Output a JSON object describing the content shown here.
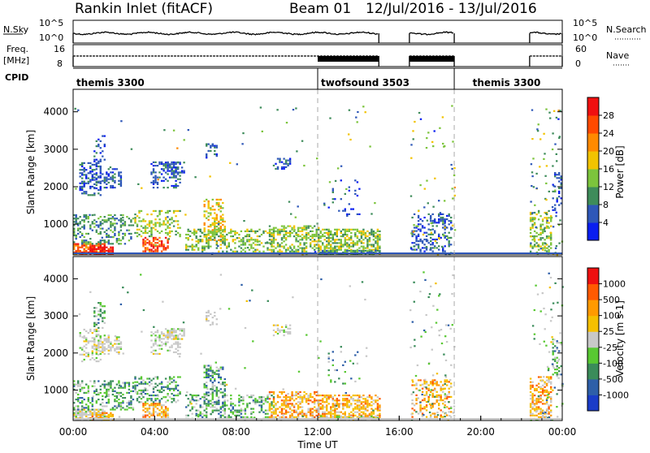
{
  "header": {
    "station": "Rankin Inlet (fitACF)",
    "beam": "Beam 01",
    "date_range": "12/Jul/2016 - 13/Jul/2016"
  },
  "top_panels": {
    "nsky_label": "N.Sky",
    "nsearch_label": "N.Search",
    "freq_label": "Freq.",
    "freq_unit": "[MHz]",
    "nave_label": "Nave",
    "cpid_label": "CPID",
    "left_top_tick": "10^5",
    "left_bottom_tick": "10^0",
    "right_top_tick": "10^5",
    "right_bottom_tick": "10^0",
    "freq_ticks": [
      "16",
      "8"
    ],
    "nave_ticks": [
      "60",
      "0"
    ]
  },
  "cpid_segments": [
    {
      "label": "themis 3300",
      "start_h": 0,
      "end_h": 12
    },
    {
      "label": "twofsound 3503",
      "start_h": 12,
      "end_h": 18.7
    },
    {
      "label": "themis 3300",
      "start_h": 18.7,
      "end_h": 24
    }
  ],
  "x_axis": {
    "label": "Time UT",
    "ticks": [
      "00:00",
      "04:00",
      "08:00",
      "12:00",
      "16:00",
      "20:00",
      "00:00"
    ]
  },
  "chart_data": [
    {
      "type": "heatmap",
      "title": "",
      "parameter": "Power",
      "ylabel": "Slant Range [km]",
      "ylim": [
        180,
        4600
      ],
      "xlim_hours": [
        0,
        24
      ],
      "yticks": [
        1000,
        2000,
        3000,
        4000
      ],
      "colorbar_label": "Power [dB]",
      "colorbar_ticks": [
        "4",
        "8",
        "12",
        "16",
        "20",
        "24",
        "28"
      ],
      "colorbar_colors": [
        "#0a1ef0",
        "#2e57b8",
        "#3e8c5a",
        "#7cc43c",
        "#f2c300",
        "#ff8a00",
        "#ff4a00",
        "#f01010"
      ],
      "colorbar_range": [
        0,
        32
      ]
    },
    {
      "type": "heatmap",
      "title": "",
      "parameter": "Velocity",
      "ylabel": "Slant Range [km]",
      "ylim": [
        180,
        4600
      ],
      "xlim_hours": [
        0,
        24
      ],
      "yticks": [
        1000,
        2000,
        3000,
        4000
      ],
      "colorbar_label": "Velocity [m s-1]",
      "colorbar_ticks": [
        "1000",
        "500",
        "100",
        "25",
        "-25",
        "-100",
        "-500",
        "-1000"
      ],
      "colorbar_colors": [
        "#1a3cc8",
        "#2e5fa8",
        "#3a8c5a",
        "#58c832",
        "#c8c8c8",
        "#f5c000",
        "#ff9a00",
        "#ff5a00",
        "#ee1010"
      ]
    }
  ]
}
